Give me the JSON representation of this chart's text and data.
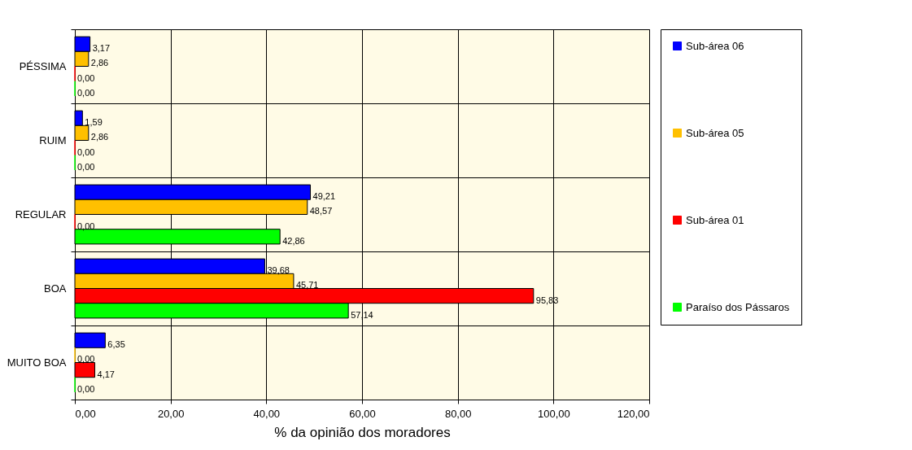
{
  "chart_data": {
    "type": "bar",
    "orientation": "horizontal",
    "categories": [
      "PÉSSIMA",
      "RUIM",
      "REGULAR",
      "BOA",
      "MUITO BOA"
    ],
    "series": [
      {
        "name": "Sub-área 06",
        "color": "#0000ff",
        "values": [
          3.17,
          1.59,
          49.21,
          39.68,
          6.35
        ],
        "value_labels": [
          "3,17",
          "1,59",
          "49,21",
          "39,68",
          "6,35"
        ]
      },
      {
        "name": "Sub-área 05",
        "color": "#ffc000",
        "values": [
          2.86,
          2.86,
          48.57,
          45.71,
          0
        ],
        "value_labels": [
          "2,86",
          "2,86",
          "48,57",
          "45,71",
          "0,00"
        ]
      },
      {
        "name": "Sub-área 01",
        "color": "#ff0000",
        "values": [
          0,
          0,
          0,
          95.83,
          4.17
        ],
        "value_labels": [
          "0,00",
          "0,00",
          "0,00",
          "95,83",
          "4,17"
        ]
      },
      {
        "name": "Paraíso dos Pássaros",
        "color": "#00ff00",
        "values": [
          0,
          0,
          42.86,
          57.14,
          0
        ],
        "value_labels": [
          "0,00",
          "0,00",
          "42,86",
          "57,14",
          "0,00"
        ]
      }
    ],
    "xlim": [
      0,
      120
    ],
    "xticks": [
      {
        "value": 0,
        "label": "0,00"
      },
      {
        "value": 20,
        "label": "20,00"
      },
      {
        "value": 40,
        "label": "40,00"
      },
      {
        "value": 60,
        "label": "60,00"
      },
      {
        "value": 80,
        "label": "80,00"
      },
      {
        "value": 100,
        "label": "100,00"
      },
      {
        "value": 120,
        "label": "120,00"
      }
    ],
    "xlabel": "% da opinião dos moradores",
    "grid": true,
    "legend": "right"
  }
}
